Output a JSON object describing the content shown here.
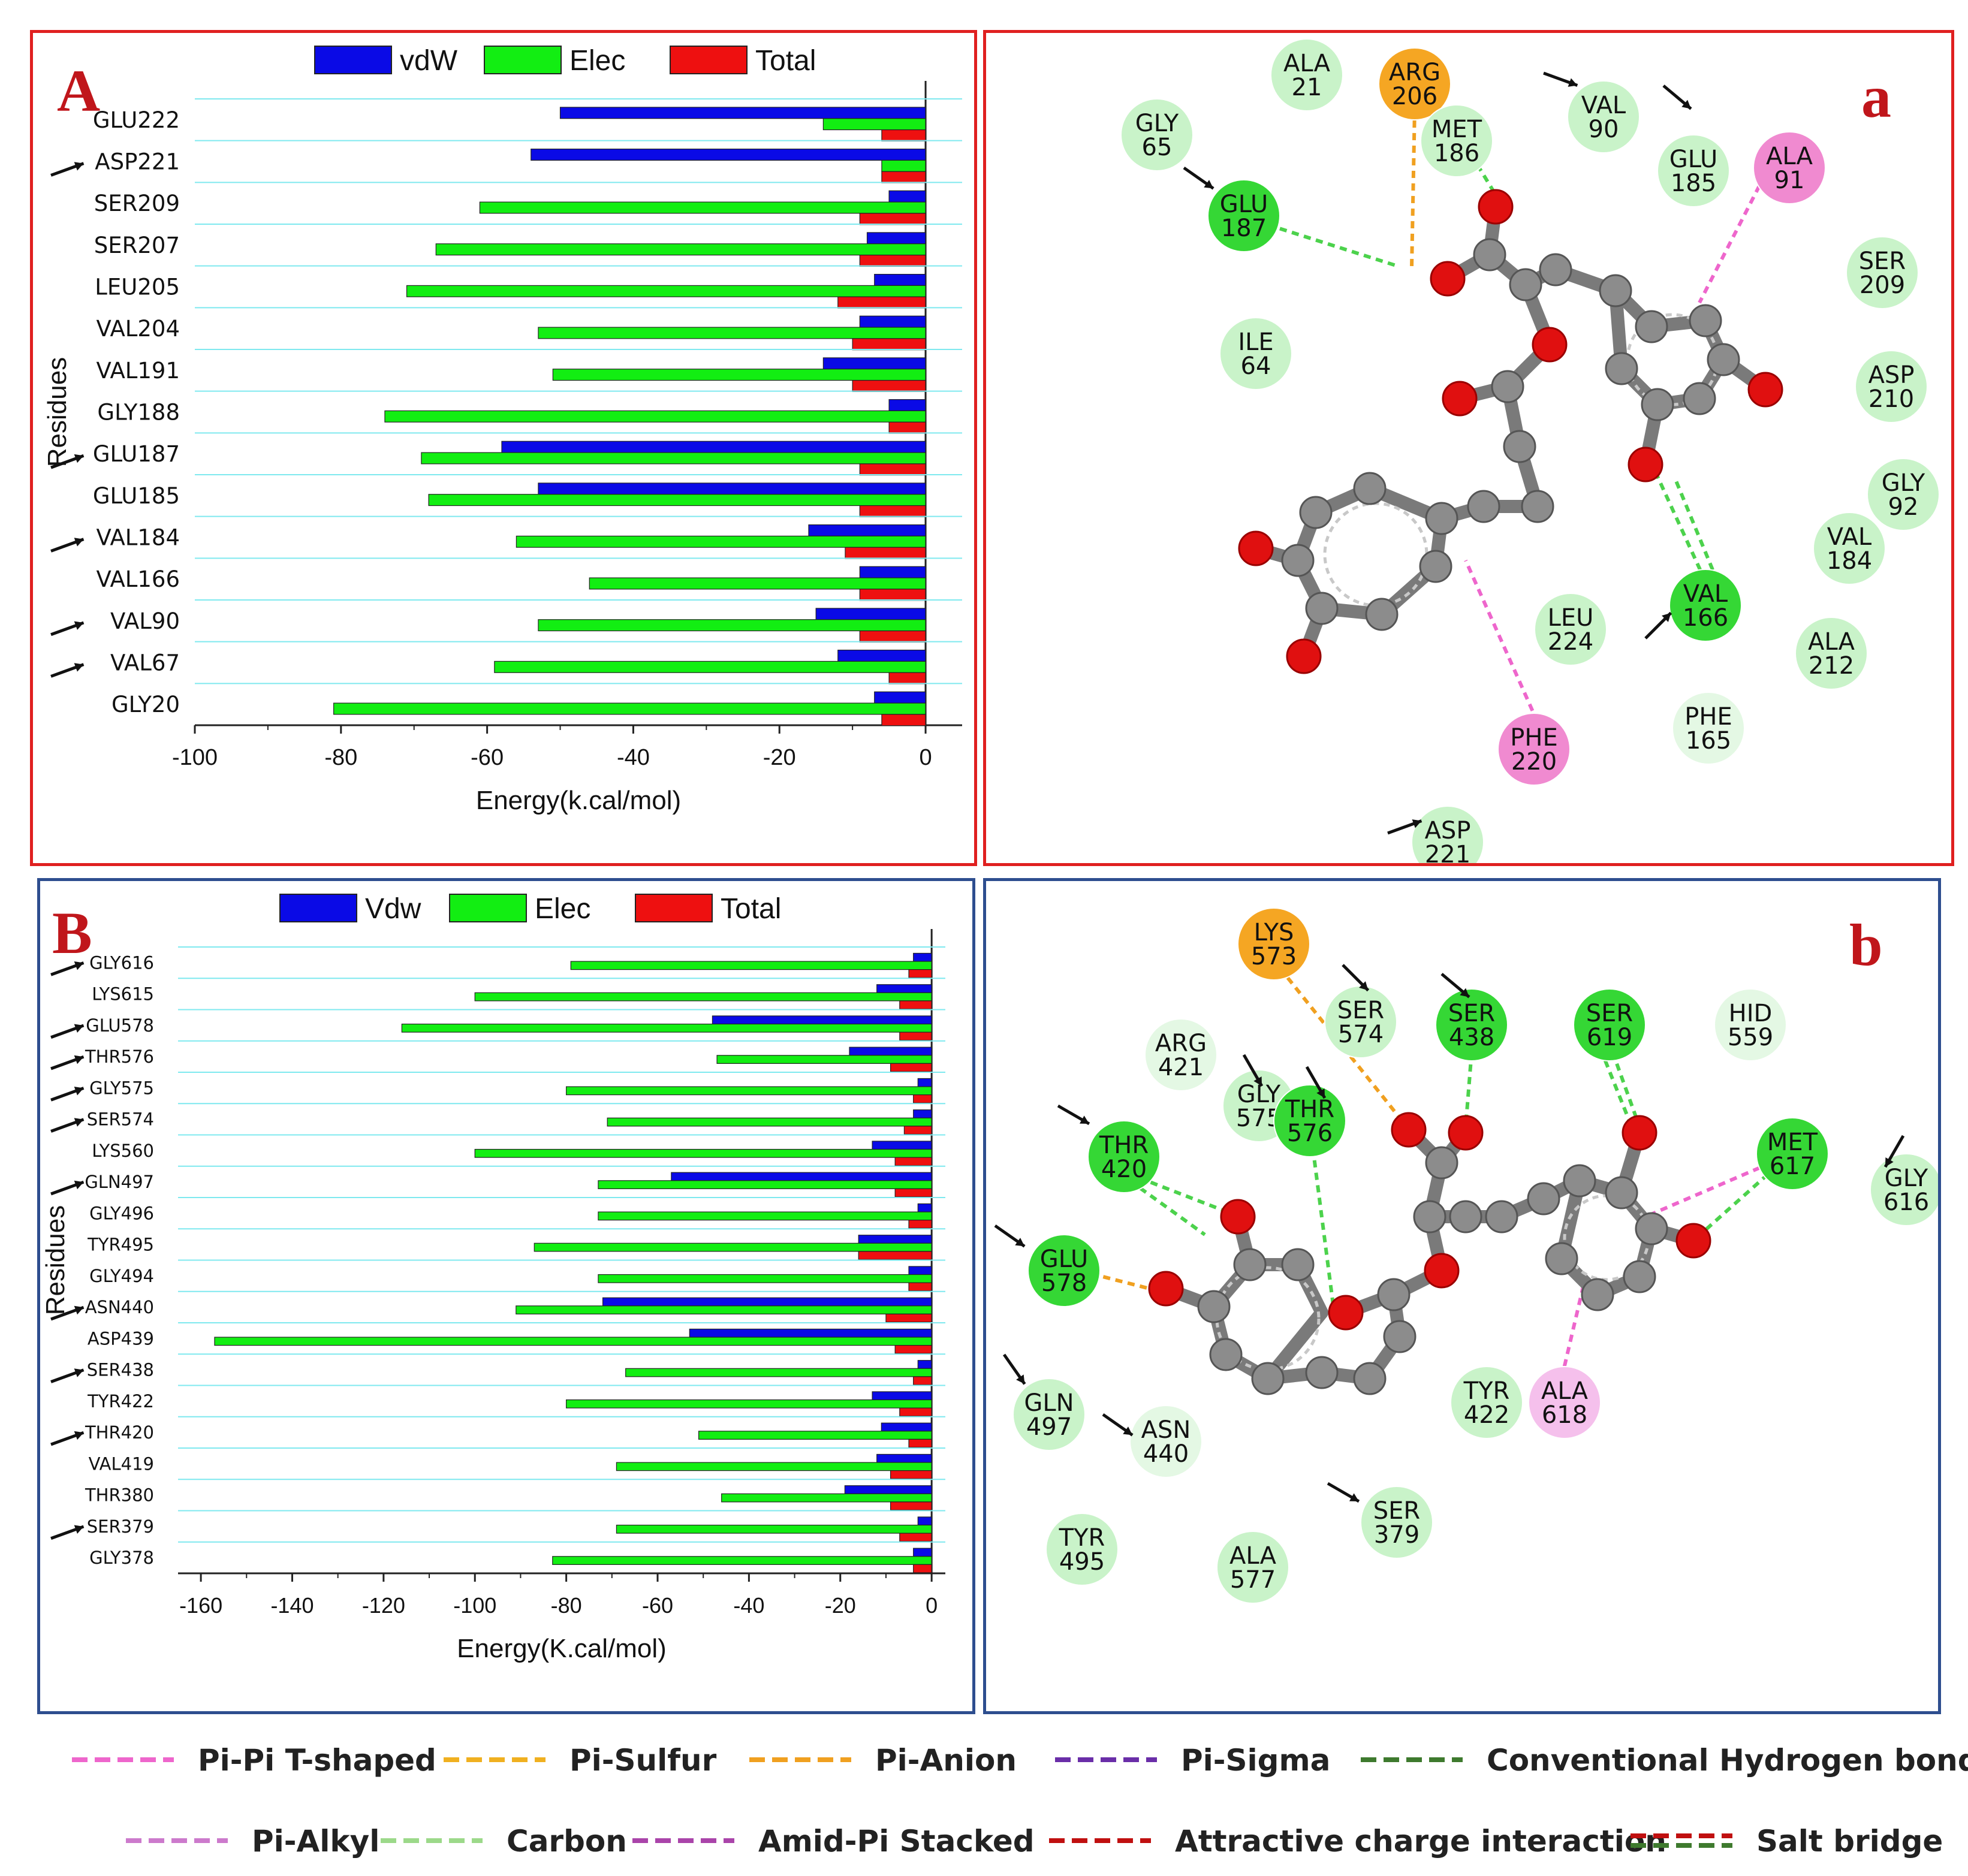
{
  "colors": {
    "vdw": "#0a0ae6",
    "elec": "#12ee12",
    "total": "#ee1010",
    "frame_red": "#e02020",
    "frame_blue": "#2e4e8f",
    "letter": "#c0161b",
    "gridline": "#7fe9ef",
    "residue_green": "#c9f3c9",
    "residue_bright_green": "#35d735",
    "residue_orange": "#f5a623",
    "residue_pink": "#f08ad0",
    "atom_carbon": "#8c8c8c",
    "atom_oxygen": "#e01010"
  },
  "panel_A": {
    "letter": "A"
  },
  "panel_a": {
    "letter": "a"
  },
  "panel_B": {
    "letter": "B"
  },
  "panel_b": {
    "letter": "b"
  },
  "chart_data": [
    {
      "type": "bar",
      "orientation": "horizontal",
      "panel": "A",
      "title": "",
      "xlabel": "Energy(k.cal/mol)",
      "ylabel": "Residues",
      "xlim": [
        -100,
        5
      ],
      "xticks": [
        -100,
        -80,
        -60,
        -40,
        -20,
        0
      ],
      "legend_labels": [
        "vdW",
        "Elec",
        "Total"
      ],
      "legend_position": "top",
      "categories": [
        "GLU222",
        "ASP221",
        "SER209",
        "SER207",
        "LEU205",
        "VAL204",
        "VAL191",
        "GLY188",
        "GLU187",
        "GLU185",
        "VAL184",
        "VAL166",
        "VAL90",
        "VAL67",
        "GLY20"
      ],
      "arrowed": [
        "ASP221",
        "GLU187",
        "VAL184",
        "VAL90",
        "VAL67"
      ],
      "series": [
        {
          "name": "vdW",
          "values": [
            -50,
            -54,
            -5,
            -8,
            -7,
            -9,
            -14,
            -5,
            -58,
            -53,
            -16,
            -9,
            -15,
            -12,
            -7
          ]
        },
        {
          "name": "Elec",
          "values": [
            -14,
            -6,
            -61,
            -67,
            -71,
            -53,
            -51,
            -74,
            -69,
            -68,
            -56,
            -46,
            -53,
            -59,
            -81
          ]
        },
        {
          "name": "Total",
          "values": [
            -6,
            -6,
            -9,
            -9,
            -12,
            -10,
            -10,
            -5,
            -9,
            -9,
            -11,
            -9,
            -9,
            -5,
            -6
          ]
        }
      ]
    },
    {
      "type": "bar",
      "orientation": "horizontal",
      "panel": "B",
      "title": "",
      "xlabel": "Energy(K.cal/mol)",
      "ylabel": "Residues",
      "xlim": [
        -165,
        3
      ],
      "xticks": [
        -160,
        -140,
        -120,
        -100,
        -80,
        -60,
        -40,
        -20,
        0
      ],
      "legend_labels": [
        "Vdw",
        "Elec",
        "Total"
      ],
      "legend_position": "top",
      "categories": [
        "GLY616",
        "LYS615",
        "GLU578",
        "THR576",
        "GLY575",
        "SER574",
        "LYS560",
        "GLN497",
        "GLY496",
        "TYR495",
        "GLY494",
        "ASN440",
        "ASP439",
        "SER438",
        "TYR422",
        "THR420",
        "VAL419",
        "THR380",
        "SER379",
        "GLY378"
      ],
      "arrowed": [
        "GLY616",
        "GLU578",
        "THR576",
        "GLY575",
        "SER574",
        "GLN497",
        "ASN440",
        "SER438",
        "THR420",
        "SER379"
      ],
      "series": [
        {
          "name": "Vdw",
          "values": [
            -4,
            -12,
            -48,
            -18,
            -3,
            -4,
            -13,
            -57,
            -3,
            -16,
            -5,
            -72,
            -53,
            -3,
            -13,
            -11,
            -12,
            -19,
            -3,
            -4
          ]
        },
        {
          "name": "Elec",
          "values": [
            -79,
            -100,
            -116,
            -47,
            -80,
            -71,
            -100,
            -73,
            -73,
            -87,
            -73,
            -91,
            -157,
            -67,
            -80,
            -51,
            -69,
            -46,
            -69,
            -83
          ]
        },
        {
          "name": "Total",
          "values": [
            -5,
            -7,
            -7,
            -9,
            -4,
            -6,
            -8,
            -8,
            -5,
            -16,
            -5,
            -10,
            -8,
            -4,
            -7,
            -5,
            -9,
            -9,
            -7,
            -4
          ]
        }
      ]
    }
  ],
  "diagram_a": {
    "residues": [
      {
        "name": "ALA",
        "num": "21",
        "kind": "green",
        "arrow": false
      },
      {
        "name": "ARG",
        "num": "206",
        "kind": "orange",
        "arrow": false
      },
      {
        "name": "VAL",
        "num": "90",
        "kind": "green",
        "arrow": true
      },
      {
        "name": "GLY",
        "num": "65",
        "kind": "green",
        "arrow": false
      },
      {
        "name": "MET",
        "num": "186",
        "kind": "green",
        "arrow": false
      },
      {
        "name": "GLU",
        "num": "185",
        "kind": "green",
        "arrow": true
      },
      {
        "name": "ALA",
        "num": "91",
        "kind": "pink",
        "arrow": false
      },
      {
        "name": "GLU",
        "num": "187",
        "kind": "bright",
        "arrow": true
      },
      {
        "name": "SER",
        "num": "209",
        "kind": "green",
        "arrow": false
      },
      {
        "name": "ILE",
        "num": "64",
        "kind": "green",
        "arrow": false
      },
      {
        "name": "ASP",
        "num": "210",
        "kind": "green",
        "arrow": false
      },
      {
        "name": "GLY",
        "num": "92",
        "kind": "green",
        "arrow": false
      },
      {
        "name": "VAL",
        "num": "184",
        "kind": "green",
        "arrow": false
      },
      {
        "name": "VAL",
        "num": "166",
        "kind": "bright",
        "arrow": true
      },
      {
        "name": "LEU",
        "num": "224",
        "kind": "green",
        "arrow": false
      },
      {
        "name": "ALA",
        "num": "212",
        "kind": "green",
        "arrow": false
      },
      {
        "name": "PHE",
        "num": "165",
        "kind": "pale",
        "arrow": false
      },
      {
        "name": "PHE",
        "num": "220",
        "kind": "pink",
        "arrow": false
      },
      {
        "name": "ASP",
        "num": "221",
        "kind": "green",
        "arrow": true
      }
    ]
  },
  "diagram_b": {
    "residues": [
      {
        "name": "LYS",
        "num": "573",
        "kind": "orange",
        "arrow": false
      },
      {
        "name": "SER",
        "num": "574",
        "kind": "green",
        "arrow": true
      },
      {
        "name": "SER",
        "num": "438",
        "kind": "bright",
        "arrow": true
      },
      {
        "name": "SER",
        "num": "619",
        "kind": "bright",
        "arrow": false
      },
      {
        "name": "HID",
        "num": "559",
        "kind": "pale",
        "arrow": false
      },
      {
        "name": "ARG",
        "num": "421",
        "kind": "pale",
        "arrow": false
      },
      {
        "name": "GLY",
        "num": "575",
        "kind": "green",
        "arrow": true
      },
      {
        "name": "THR",
        "num": "576",
        "kind": "bright",
        "arrow": true
      },
      {
        "name": "THR",
        "num": "420",
        "kind": "bright",
        "arrow": true
      },
      {
        "name": "MET",
        "num": "617",
        "kind": "bright",
        "arrow": false
      },
      {
        "name": "GLY",
        "num": "616",
        "kind": "green",
        "arrow": true
      },
      {
        "name": "GLU",
        "num": "578",
        "kind": "bright",
        "arrow": true
      },
      {
        "name": "GLN",
        "num": "497",
        "kind": "green",
        "arrow": true
      },
      {
        "name": "ASN",
        "num": "440",
        "kind": "pale",
        "arrow": true
      },
      {
        "name": "TYR",
        "num": "422",
        "kind": "green",
        "arrow": false
      },
      {
        "name": "ALA",
        "num": "618",
        "kind": "pinklight",
        "arrow": false
      },
      {
        "name": "SER",
        "num": "379",
        "kind": "green",
        "arrow": true
      },
      {
        "name": "TYR",
        "num": "495",
        "kind": "green",
        "arrow": false
      },
      {
        "name": "ALA",
        "num": "577",
        "kind": "green",
        "arrow": false
      }
    ]
  },
  "interaction_legend": [
    {
      "label": "Pi-Pi T-shaped",
      "color": "#ee66cc",
      "icon": "dashed-line-icon"
    },
    {
      "label": "Pi-Sulfur",
      "color": "#f0b020",
      "icon": "dashed-line-icon"
    },
    {
      "label": "Pi-Anion",
      "color": "#f0a020",
      "icon": "dashed-line-icon"
    },
    {
      "label": "Pi-Sigma",
      "color": "#6a2ea8",
      "icon": "dashed-line-icon"
    },
    {
      "label": "Conventional Hydrogen bond",
      "color": "#3e7a2e",
      "icon": "dashed-line-icon"
    },
    {
      "label": "Pi-Alkyl",
      "color": "#cc7acc",
      "icon": "dashed-line-icon"
    },
    {
      "label": "Carbon",
      "color": "#9cd98a",
      "icon": "dashed-line-icon"
    },
    {
      "label": "Amid-Pi Stacked",
      "color": "#aa44aa",
      "icon": "dashed-line-icon"
    },
    {
      "label": "Attractive charge interaction",
      "color": "#c01010",
      "icon": "dashed-line-icon"
    },
    {
      "label": "Salt bridge",
      "color": "#3e7a2e",
      "color2": "#c01010",
      "icon": "double-dashed-line-icon"
    }
  ]
}
